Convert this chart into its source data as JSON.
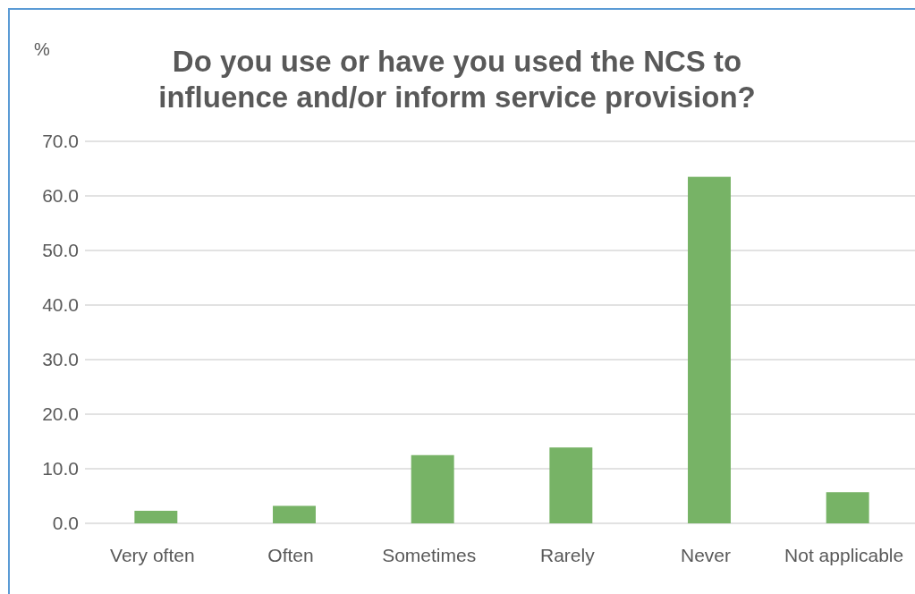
{
  "chart_data": {
    "type": "bar",
    "title": "Do you use or have you used the NCS to\ninfluence and/or inform service provision?",
    "ylabel": "%",
    "categories": [
      "Very often",
      "Often",
      "Sometimes",
      "Rarely",
      "Never",
      "Not applicable"
    ],
    "values": [
      2.3,
      3.2,
      12.5,
      13.9,
      63.5,
      5.7
    ],
    "color": "#77b366",
    "ylim": [
      0,
      70
    ],
    "yticks": [
      {
        "value": 0,
        "label": "0.0"
      },
      {
        "value": 10,
        "label": "10.0"
      },
      {
        "value": 20,
        "label": "20.0"
      },
      {
        "value": 30,
        "label": "30.0"
      },
      {
        "value": 40,
        "label": "40.0"
      },
      {
        "value": 50,
        "label": "50.0"
      },
      {
        "value": 60,
        "label": "60.0"
      },
      {
        "value": 70,
        "label": "70.0"
      }
    ],
    "grid": "y"
  }
}
